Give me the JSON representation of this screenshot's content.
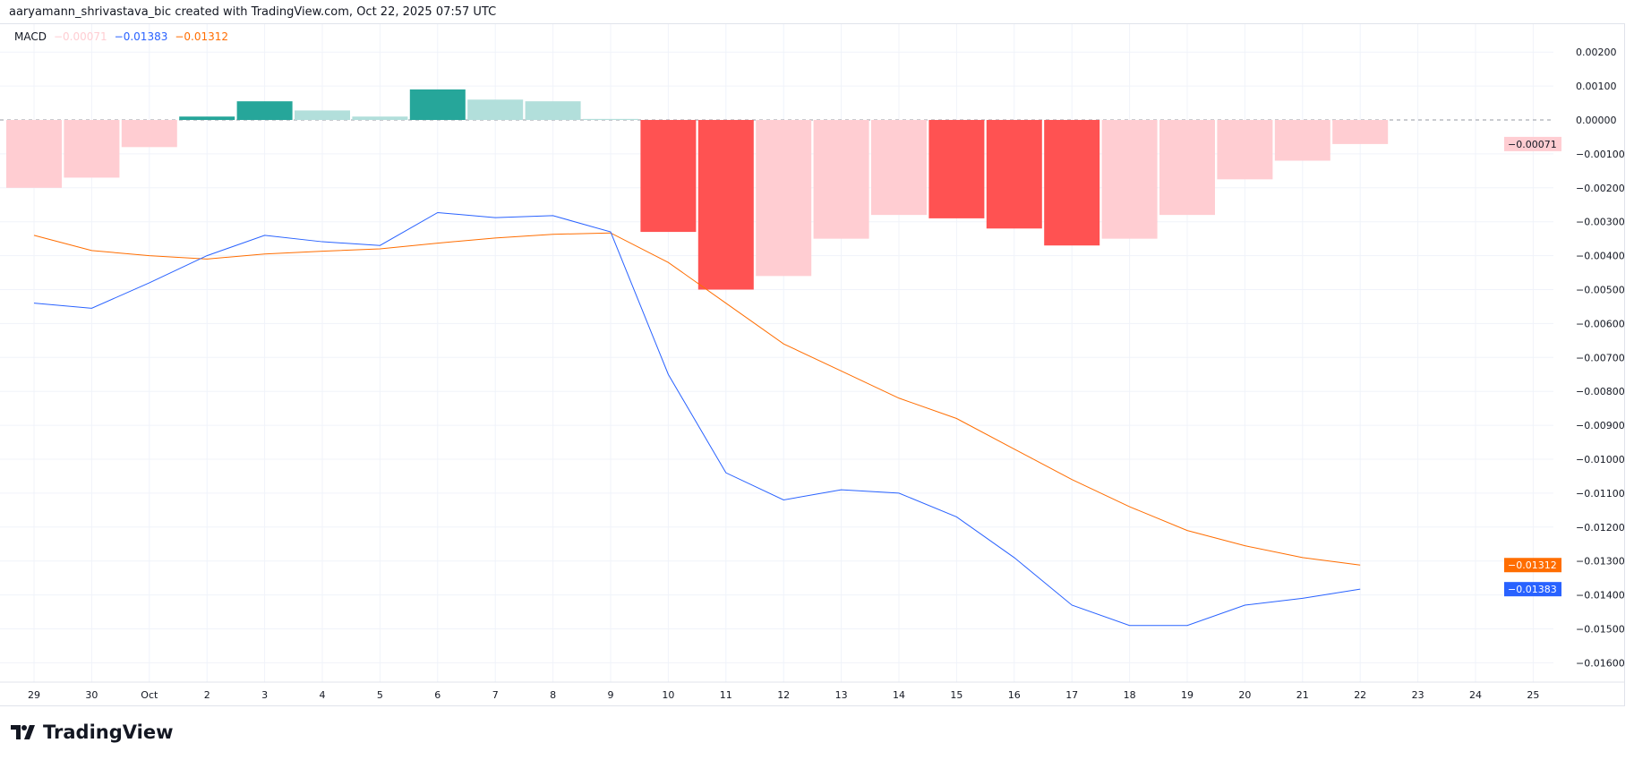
{
  "credit": "aaryamann_shrivastava_bic created with TradingView.com, Oct 22, 2025 07:57 UTC",
  "brand": "TradingView",
  "colors": {
    "hist_up_grow": "#26a69a",
    "hist_up_fall": "#b2dfdb",
    "hist_down_fall": "#ff5252",
    "hist_down_rise": "#ffcdd2",
    "macd": "#2962ff",
    "signal": "#ff6d00"
  },
  "legend": {
    "name": "MACD",
    "hist": "−0.00071",
    "macd": "−0.01383",
    "signal": "−0.01312"
  },
  "chart_data": {
    "type": "bar+line",
    "title": "MACD",
    "x_tick_labels": [
      "29",
      "30",
      "Oct",
      "2",
      "3",
      "4",
      "5",
      "6",
      "7",
      "8",
      "9",
      "10",
      "11",
      "12",
      "13",
      "14",
      "15",
      "16",
      "17",
      "18",
      "19",
      "20",
      "21",
      "22",
      "23",
      "24",
      "25"
    ],
    "y_tick_labels": [
      "0.00200",
      "0.00100",
      "0.00000",
      "−0.00100",
      "−0.00200",
      "−0.00300",
      "−0.00400",
      "−0.00500",
      "−0.00600",
      "−0.00700",
      "−0.00800",
      "−0.00900",
      "−0.01000",
      "−0.01100",
      "−0.01200",
      "−0.01300",
      "−0.01400",
      "−0.01500",
      "−0.01600"
    ],
    "ylim": [
      -0.0166,
      0.0022
    ],
    "grid": true,
    "dates": [
      "Sep 29",
      "Sep 30",
      "Oct 1",
      "Oct 2",
      "Oct 3",
      "Oct 4",
      "Oct 5",
      "Oct 6",
      "Oct 7",
      "Oct 8",
      "Oct 9",
      "Oct 10",
      "Oct 11",
      "Oct 12",
      "Oct 13",
      "Oct 14",
      "Oct 15",
      "Oct 16",
      "Oct 17",
      "Oct 18",
      "Oct 19",
      "Oct 20",
      "Oct 21",
      "Oct 22"
    ],
    "histogram": [
      -0.002,
      -0.0017,
      -0.0008,
      0.0001,
      0.00055,
      0.00028,
      0.0001,
      0.0009,
      0.0006,
      0.00055,
      3e-05,
      -0.0033,
      -0.005,
      -0.0046,
      -0.0035,
      -0.0028,
      -0.0029,
      -0.0032,
      -0.0037,
      -0.0035,
      -0.0028,
      -0.00175,
      -0.0012,
      -0.00071
    ],
    "histogram_color": [
      "down_rise",
      "down_rise",
      "down_rise",
      "up_grow",
      "up_grow",
      "up_fall",
      "up_fall",
      "up_grow",
      "up_fall",
      "up_fall",
      "up_fall",
      "down_fall",
      "down_fall",
      "down_rise",
      "down_rise",
      "down_rise",
      "down_fall",
      "down_fall",
      "down_fall",
      "down_rise",
      "down_rise",
      "down_rise",
      "down_rise",
      "down_rise"
    ],
    "macd": [
      -0.0054,
      -0.00555,
      -0.0048,
      -0.004,
      -0.0034,
      -0.00359,
      -0.0037,
      -0.00273,
      -0.00288,
      -0.00282,
      -0.0033,
      -0.0075,
      -0.0104,
      -0.0112,
      -0.0109,
      -0.011,
      -0.0117,
      -0.0129,
      -0.0143,
      -0.0149,
      -0.0149,
      -0.0143,
      -0.0141,
      -0.01383
    ],
    "signal": [
      -0.0034,
      -0.00385,
      -0.004,
      -0.0041,
      -0.00395,
      -0.00387,
      -0.0038,
      -0.00363,
      -0.00348,
      -0.00337,
      -0.00333,
      -0.0042,
      -0.0054,
      -0.0066,
      -0.0074,
      -0.0082,
      -0.0088,
      -0.0097,
      -0.0106,
      -0.0114,
      -0.0121,
      -0.01255,
      -0.0129,
      -0.01312
    ],
    "last_value_labels": {
      "hist": "−0.00071",
      "signal": "−0.01312",
      "macd": "−0.01383"
    }
  }
}
